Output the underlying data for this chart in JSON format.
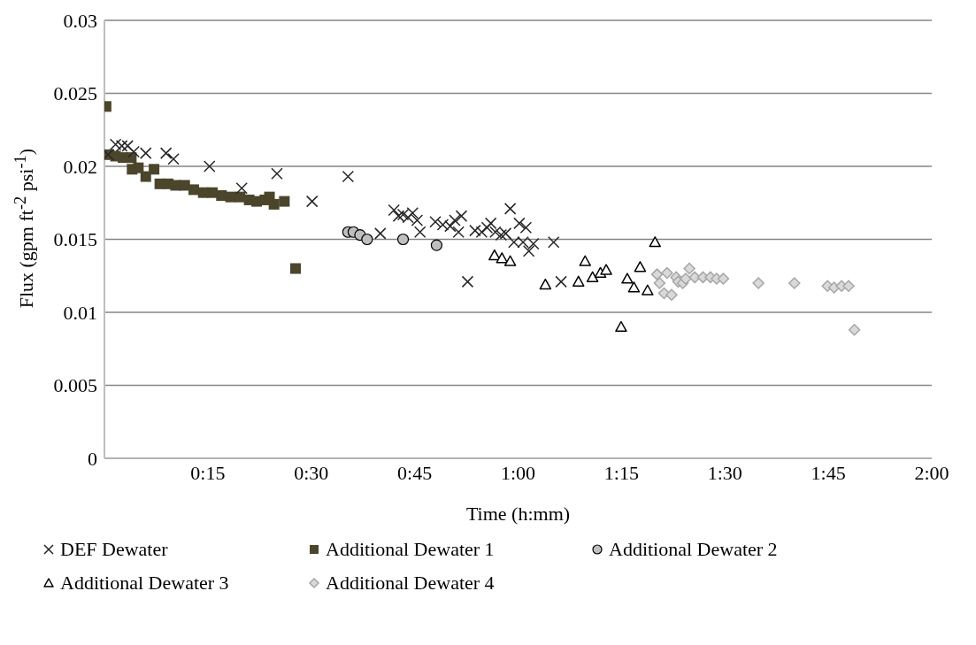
{
  "chart_data": {
    "type": "scatter",
    "xlabel": "Time  (h:mm)",
    "ylabel": "Flux  (gpm ft$^{-2}$ psi$^{-1}$)",
    "xlim": [
      0,
      2
    ],
    "xticks": [
      {
        "value": 0,
        "label": null
      },
      {
        "value": 0.25,
        "label": "0:15"
      },
      {
        "value": 0.5,
        "label": "0:30"
      },
      {
        "value": 0.75,
        "label": "0:45"
      },
      {
        "value": 1,
        "label": "1:00"
      },
      {
        "value": 1.25,
        "label": "1:15"
      },
      {
        "value": 1.5,
        "label": "1:30"
      },
      {
        "value": 1.75,
        "label": "1:45"
      },
      {
        "value": 2,
        "label": "2:00"
      }
    ],
    "ylim": [
      0,
      0.03
    ],
    "yticks": [
      0,
      0.005,
      0.01,
      0.015,
      0.02,
      0.025,
      0.03
    ],
    "grid": "y",
    "legend": "bottom",
    "series": [
      {
        "name": "DEF Dewater",
        "color": "#262626",
        "marker": "cross",
        "x": [
          0.009,
          0.027,
          0.042,
          0.056,
          0.071,
          0.1,
          0.149,
          0.167,
          0.254,
          0.332,
          0.417,
          0.502,
          0.589,
          0.667,
          0.7,
          0.711,
          0.722,
          0.734,
          0.745,
          0.756,
          0.763,
          0.8,
          0.818,
          0.836,
          0.847,
          0.863,
          0.856,
          0.878,
          0.896,
          0.912,
          0.925,
          0.934,
          0.945,
          0.959,
          0.97,
          0.981,
          0.99,
          1.003,
          1.012,
          1.019,
          1.026,
          1.037,
          1.086,
          1.104
        ],
        "values": [
          0.0208,
          0.0215,
          0.0214,
          0.0214,
          0.021,
          0.0209,
          0.0209,
          0.0205,
          0.02,
          0.0185,
          0.0195,
          0.0176,
          0.0193,
          0.0154,
          0.017,
          0.0166,
          0.0167,
          0.0165,
          0.0168,
          0.0163,
          0.0155,
          0.0162,
          0.016,
          0.0159,
          0.0163,
          0.0166,
          0.0155,
          0.0121,
          0.0156,
          0.0155,
          0.0158,
          0.0161,
          0.0155,
          0.0153,
          0.0154,
          0.0171,
          0.0148,
          0.0161,
          0.0148,
          0.0158,
          0.0142,
          0.0147,
          0.0148,
          0.0121
        ]
      },
      {
        "name": "Additional Dewater 1",
        "color": "#4b452c",
        "marker": "square",
        "x": [
          0.004,
          0.011,
          0.027,
          0.045,
          0.065,
          0.067,
          0.082,
          0.1,
          0.12,
          0.134,
          0.154,
          0.172,
          0.194,
          0.216,
          0.239,
          0.261,
          0.283,
          0.305,
          0.328,
          0.35,
          0.368,
          0.388,
          0.399,
          0.41,
          0.424,
          0.435,
          0.462
        ],
        "values": [
          0.0241,
          0.0208,
          0.0207,
          0.0206,
          0.0206,
          0.0198,
          0.0199,
          0.0193,
          0.0198,
          0.0188,
          0.0188,
          0.0187,
          0.0187,
          0.0184,
          0.0182,
          0.0182,
          0.018,
          0.0179,
          0.0179,
          0.0177,
          0.0176,
          0.0177,
          0.0179,
          0.0174,
          null,
          0.0176,
          0.013
        ]
      },
      {
        "name": "Additional Dewater 2",
        "color": "#bfbfbf",
        "marker": "circle",
        "x": [
          0.589,
          0.602,
          0.618,
          0.635,
          0.722,
          0.803
        ],
        "values": [
          0.0155,
          0.0155,
          0.0153,
          0.015,
          0.015,
          0.0146
        ]
      },
      {
        "name": "Additional Dewater 3",
        "color": "#000000",
        "marker": "triangle",
        "x": [
          0.943,
          0.961,
          0.981,
          1.066,
          1.146,
          1.162,
          1.18,
          1.199,
          1.213,
          1.249,
          1.264,
          1.28,
          1.295,
          1.313,
          1.331
        ],
        "values": [
          0.0139,
          0.0137,
          0.0135,
          0.0119,
          0.0121,
          0.0135,
          0.0124,
          0.0127,
          0.0129,
          0.009,
          0.0123,
          0.0117,
          0.0131,
          0.0115,
          0.0148
        ]
      },
      {
        "name": "Additional Dewater 4",
        "color": "#a6a6a6",
        "marker": "diamond",
        "x": [
          1.336,
          1.342,
          1.36,
          1.353,
          1.371,
          1.382,
          1.387,
          1.398,
          1.405,
          1.414,
          1.427,
          1.447,
          1.465,
          1.48,
          1.496,
          1.581,
          1.668,
          1.748,
          1.764,
          1.782,
          1.799,
          1.813
        ],
        "values": [
          0.0126,
          0.012,
          0.0127,
          0.0113,
          0.0112,
          0.0124,
          0.0121,
          0.012,
          0.0123,
          0.013,
          0.0124,
          0.0124,
          0.0124,
          0.0123,
          0.0123,
          0.012,
          0.012,
          0.0118,
          0.0117,
          0.0118,
          0.0118,
          0.0088
        ]
      }
    ]
  }
}
